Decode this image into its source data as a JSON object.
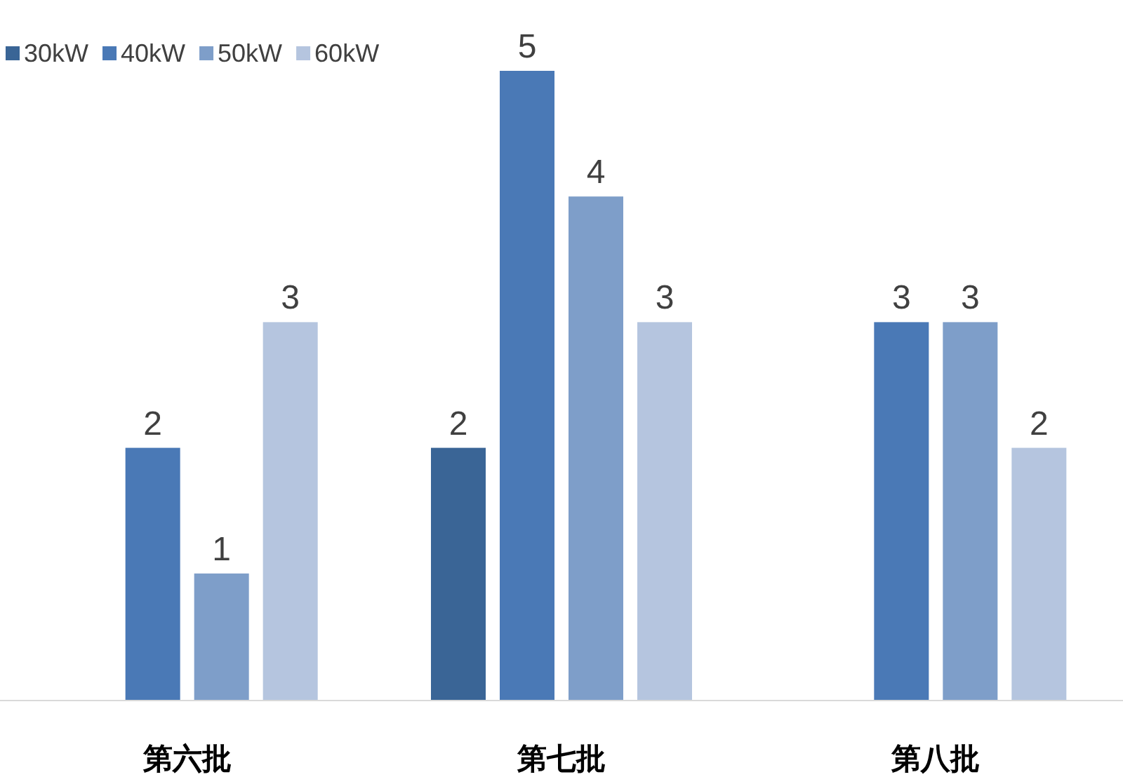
{
  "chart_data": {
    "type": "bar",
    "categories": [
      "第六批",
      "第七批",
      "第八批"
    ],
    "legend": "top left",
    "series": [
      {
        "name": "30kW",
        "color": "#3a6596",
        "values": [
          0,
          2,
          0
        ],
        "value_labels": [
          null,
          "2",
          null
        ]
      },
      {
        "name": "40kW",
        "color": "#4a79b6",
        "values": [
          2,
          5,
          3
        ],
        "value_labels": [
          "2",
          "5",
          "3"
        ]
      },
      {
        "name": "50kW",
        "color": "#7e9ec9",
        "values": [
          1,
          4,
          3
        ],
        "value_labels": [
          "1",
          "4",
          "3"
        ]
      },
      {
        "name": "60kW",
        "color": "#b5c5df",
        "values": [
          3,
          3,
          2
        ],
        "value_labels": [
          "3",
          "3",
          "2"
        ]
      }
    ]
  }
}
